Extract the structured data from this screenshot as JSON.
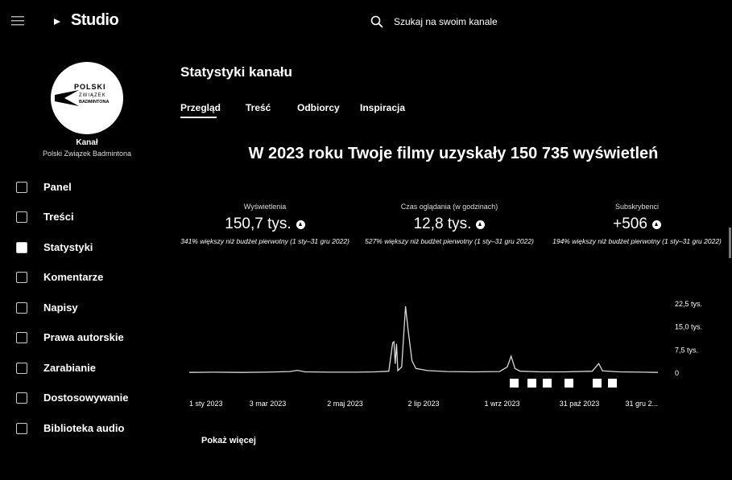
{
  "header": {
    "brand": "Studio",
    "search_placeholder": "Szukaj na swoim kanale"
  },
  "sidebar": {
    "logo_lines": [
      "POLSKI",
      "ZWIĄZEK",
      "BADMINTONA"
    ],
    "channel_label": "Kanał",
    "channel_name": "Polski Związek Badmintona",
    "nav": [
      "Panel",
      "Treści",
      "Statystyki",
      "Komentarze",
      "Napisy",
      "Prawa autorskie",
      "Zarabianie",
      "Dostosowywanie",
      "Biblioteka audio"
    ]
  },
  "main": {
    "title": "Statystyki kanału",
    "tabs": [
      "Przegląd",
      "Treść",
      "Odbiorcy",
      "Inspiracja"
    ],
    "headline": "W 2023 roku Twoje filmy uzyskały 150 735 wyświetleń",
    "metrics": [
      {
        "label": "Wyświetlenia",
        "value": "150,7 tys.",
        "note": "341% większy niż budżet pierwotny (1 sty–31 gru 2022)"
      },
      {
        "label": "Czas oglądania (w godzinach)",
        "value": "12,8 tys.",
        "note": "527% większy niż budżet pierwotny (1 sty–31 gru 2022)"
      },
      {
        "label": "Subskrybenci",
        "value": "+506",
        "note": "194% większy niż budżet pierwotny (1 sty–31 gru 2022)"
      }
    ],
    "show_more": "Pokaż więcej"
  },
  "chart_data": {
    "type": "line",
    "color": "#d9d9d9",
    "x": [
      "2023-01-01",
      "2023-01-20",
      "2023-02-10",
      "2023-03-01",
      "2023-03-20",
      "2023-03-26",
      "2023-04-01",
      "2023-04-20",
      "2023-05-10",
      "2023-05-25",
      "2023-06-05",
      "2023-06-08",
      "2023-06-09",
      "2023-06-10",
      "2023-06-11",
      "2023-06-12",
      "2023-06-15",
      "2023-06-18",
      "2023-06-20",
      "2023-06-23",
      "2023-06-26",
      "2023-07-05",
      "2023-07-20",
      "2023-08-10",
      "2023-08-30",
      "2023-09-05",
      "2023-09-08",
      "2023-09-11",
      "2023-09-15",
      "2023-10-01",
      "2023-10-20",
      "2023-11-10",
      "2023-11-15",
      "2023-11-18",
      "2023-12-01",
      "2023-12-20",
      "2023-12-31"
    ],
    "values": [
      0.2,
      0.3,
      0.2,
      0.3,
      0.5,
      0.9,
      0.4,
      0.3,
      0.3,
      0.4,
      0.6,
      9.8,
      10.2,
      3,
      9.5,
      0.8,
      2,
      21.7,
      14,
      4,
      1.5,
      0.8,
      0.5,
      0.4,
      0.5,
      2,
      5.5,
      1.5,
      0.6,
      0.4,
      0.4,
      0.6,
      3.1,
      0.7,
      0.4,
      0.3,
      0.2
    ],
    "xlim": [
      "2023-01-01",
      "2023-12-31"
    ],
    "xticks": [
      {
        "value": "2023-01-01",
        "label": "1 sty 2023"
      },
      {
        "value": "2023-03-03",
        "label": "3 mar 2023"
      },
      {
        "value": "2023-05-02",
        "label": "2 maj 2023"
      },
      {
        "value": "2023-07-02",
        "label": "2 lip 2023"
      },
      {
        "value": "2023-09-01",
        "label": "1 wrz 2023"
      },
      {
        "value": "2023-10-31",
        "label": "31 paź 2023"
      },
      {
        "value": "2023-12-31",
        "label": "31 gru 2..."
      }
    ],
    "ylim": [
      0,
      22.5
    ],
    "yticks": [
      0,
      {
        "value": 7.5,
        "label": "7,5 tys."
      },
      {
        "value": 15,
        "label": "15,0 tys."
      },
      {
        "value": 22.5,
        "label": "22,5 tys."
      }
    ]
  }
}
